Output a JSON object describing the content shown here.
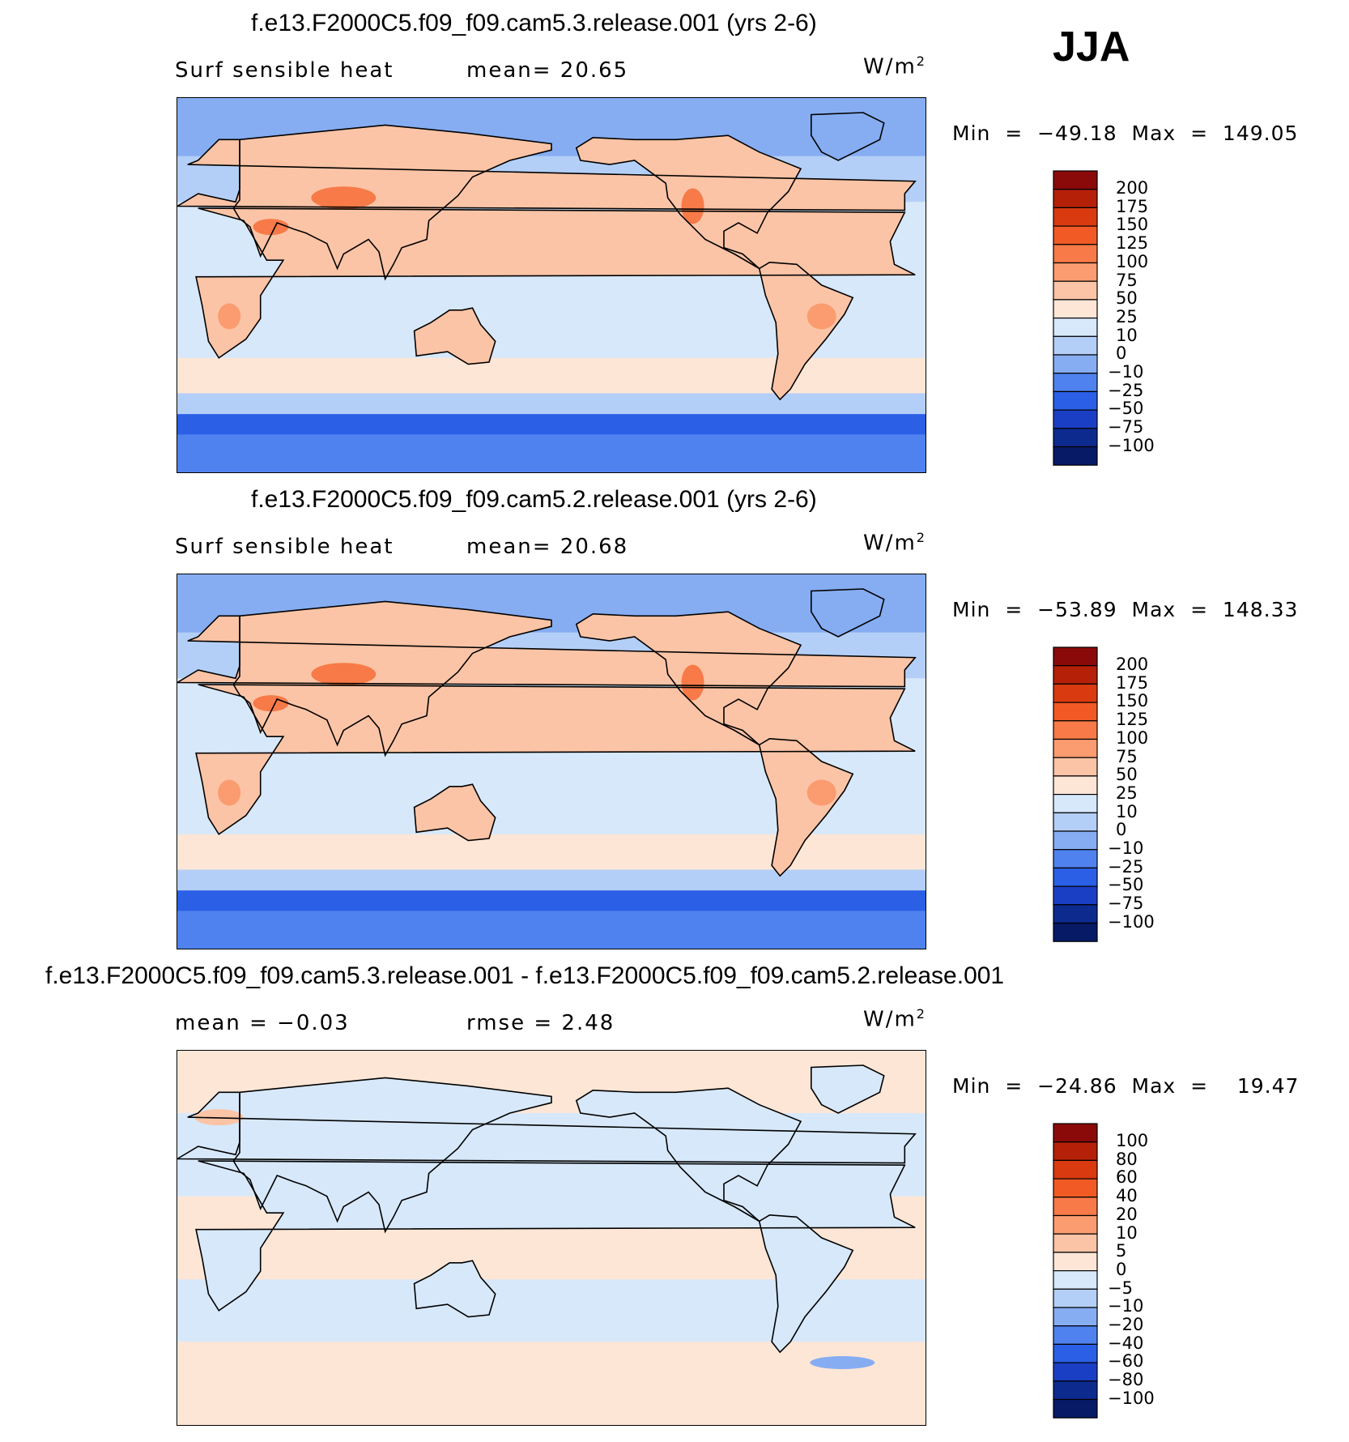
{
  "season": "JJA",
  "panels": [
    {
      "title": "f.e13.F2000C5.f09_f09.cam5.3.release.001 (yrs 2-6)",
      "left_label": "Surf  sensible  heat",
      "mid_label": "mean=   20.65",
      "units": "W/m",
      "units_exp": "2",
      "minmax": "Min  =  −49.18  Max  =  149.05",
      "levels": [
        "200",
        "175",
        "150",
        "125",
        "100",
        "75",
        "50",
        "25",
        "10",
        "0",
        "−10",
        "−25",
        "−50",
        "−75",
        "−100"
      ],
      "colors": [
        "#8a0a0a",
        "#b52008",
        "#d93a10",
        "#f25a25",
        "#f77a48",
        "#fa9c70",
        "#fcc4a6",
        "#fde6d6",
        "#d7e8fa",
        "#b4cff7",
        "#86adf2",
        "#4f82ee",
        "#2a5fe6",
        "#1b3fc4",
        "#0d2a8f",
        "#061a66"
      ]
    },
    {
      "title": "f.e13.F2000C5.f09_f09.cam5.2.release.001 (yrs 2-6)",
      "left_label": "Surf  sensible  heat",
      "mid_label": "mean=   20.68",
      "units": "W/m",
      "units_exp": "2",
      "minmax": "Min  =  −53.89  Max  =  148.33",
      "levels": [
        "200",
        "175",
        "150",
        "125",
        "100",
        "75",
        "50",
        "25",
        "10",
        "0",
        "−10",
        "−25",
        "−50",
        "−75",
        "−100"
      ],
      "colors": [
        "#8a0a0a",
        "#b52008",
        "#d93a10",
        "#f25a25",
        "#f77a48",
        "#fa9c70",
        "#fcc4a6",
        "#fde6d6",
        "#d7e8fa",
        "#b4cff7",
        "#86adf2",
        "#4f82ee",
        "#2a5fe6",
        "#1b3fc4",
        "#0d2a8f",
        "#061a66"
      ]
    },
    {
      "title": "f.e13.F2000C5.f09_f09.cam5.3.release.001 - f.e13.F2000C5.f09_f09.cam5.2.release.001",
      "left_label": "mean =    −0.03",
      "mid_label": "rmse =     2.48",
      "units": "W/m",
      "units_exp": "2",
      "minmax": "Min  =  −24.86  Max  =    19.47",
      "levels": [
        "100",
        "80",
        "60",
        "40",
        "20",
        "10",
        "5",
        "0",
        "−5",
        "−10",
        "−20",
        "−40",
        "−60",
        "−80",
        "−100"
      ],
      "colors": [
        "#8a0a0a",
        "#b52008",
        "#d93a10",
        "#f25a25",
        "#f77a48",
        "#fa9c70",
        "#fcc4a6",
        "#fde6d6",
        "#d7e8fa",
        "#b4cff7",
        "#86adf2",
        "#4f82ee",
        "#2a5fe6",
        "#1b3fc4",
        "#0d2a8f",
        "#061a66"
      ]
    }
  ]
}
